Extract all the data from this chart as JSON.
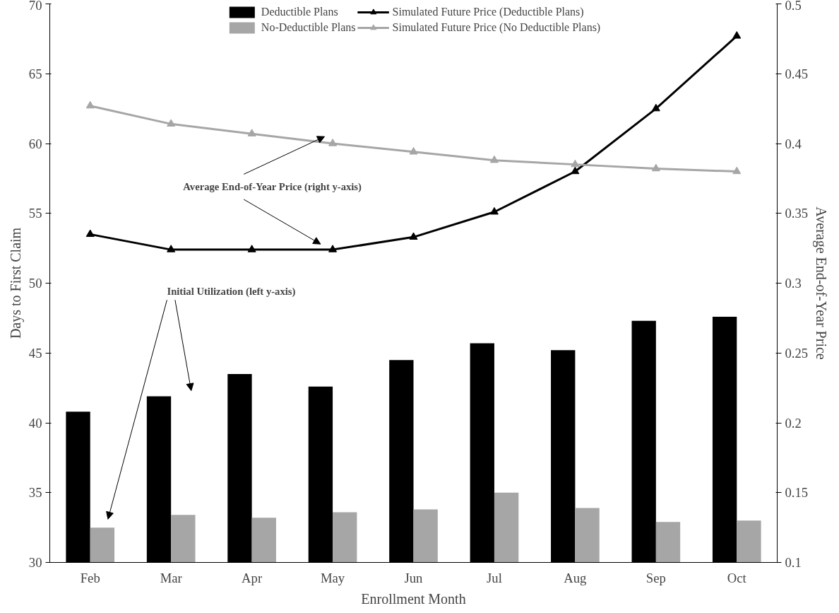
{
  "chart_data": {
    "type": "bar",
    "xlabel": "Enrollment Month",
    "ylabel": "Days to First Claim",
    "y2label": "Average End-of-Year Price",
    "categories": [
      "Feb",
      "Mar",
      "Apr",
      "May",
      "Jun",
      "Jul",
      "Aug",
      "Sep",
      "Oct"
    ],
    "series": [
      {
        "name": "Deductible Plans",
        "color": "#000000",
        "values": [
          40.8,
          41.9,
          43.5,
          42.6,
          44.5,
          45.7,
          45.2,
          47.3,
          47.6
        ]
      },
      {
        "name": "No-Deductible Plans",
        "color": "#a6a6a6",
        "values": [
          32.5,
          33.4,
          33.2,
          33.6,
          33.8,
          35.0,
          33.9,
          32.9,
          33.0
        ]
      },
      {
        "name": "Simulated Future Price (Deductible Plans)",
        "type": "line",
        "axis": "y2",
        "marker": "triangle",
        "color": "#000000",
        "values": [
          0.335,
          0.324,
          0.324,
          0.324,
          0.333,
          0.351,
          0.38,
          0.425,
          0.477
        ]
      },
      {
        "name": "Simulated Future Price (No Deductible Plans)",
        "type": "line",
        "axis": "y2",
        "marker": "triangle",
        "color": "#a6a6a6",
        "values": [
          0.427,
          0.414,
          0.407,
          0.4,
          0.394,
          0.388,
          0.385,
          0.382,
          0.38
        ]
      }
    ],
    "ylim": [
      30,
      70
    ],
    "yticks": [
      30,
      35,
      40,
      45,
      50,
      55,
      60,
      65,
      70
    ],
    "y2lim": [
      0.1,
      0.5
    ],
    "y2ticks": [
      0.1,
      0.15,
      0.2,
      0.25,
      0.3,
      0.35,
      0.4,
      0.45,
      0.5
    ],
    "annotations": [
      "Average End-of-Year  Price (right y-axis)",
      "Initial Utilization  (left y-axis)"
    ],
    "legend": "top",
    "grid": false,
    "line_style": "solid"
  }
}
